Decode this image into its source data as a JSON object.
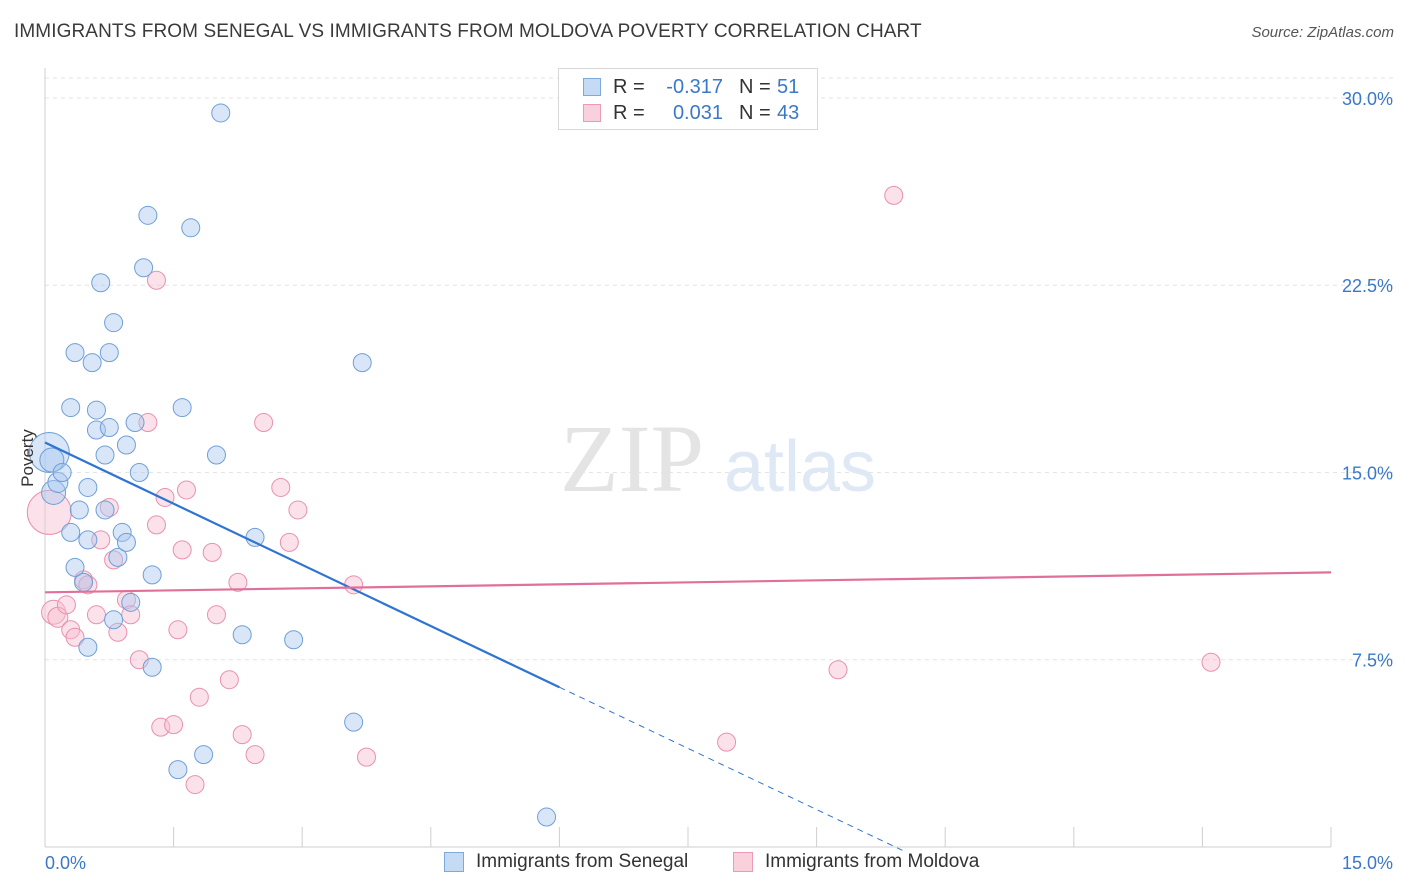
{
  "header": {
    "title": "IMMIGRANTS FROM SENEGAL VS IMMIGRANTS FROM MOLDOVA POVERTY CORRELATION CHART",
    "source": "Source: ZipAtlas.com"
  },
  "watermark": {
    "zip": "ZIP",
    "atlas": "atlas"
  },
  "legend": {
    "rows": [
      {
        "r_label": "R =",
        "r_value": "-0.317",
        "n_label": "N =",
        "n_value": "51"
      },
      {
        "r_label": "R =",
        "r_value": "0.031",
        "n_label": "N =",
        "n_value": "43"
      }
    ]
  },
  "bottom_legend": {
    "senegal": "Immigrants from Senegal",
    "moldova": "Immigrants from Moldova"
  },
  "colors": {
    "senegal_fill": "#a9c8f0",
    "senegal_stroke": "#6f9fd8",
    "senegal_line": "#2f74d0",
    "moldova_fill": "#f7bfd0",
    "moldova_stroke": "#e990ae",
    "moldova_line": "#e0709a",
    "axis_text": "#3a78c9",
    "grid": "#e3e3e3"
  },
  "chart_data": {
    "type": "scatter",
    "title": "IMMIGRANTS FROM SENEGAL VS IMMIGRANTS FROM MOLDOVA POVERTY CORRELATION CHART",
    "xlabel": "",
    "ylabel": "Poverty",
    "xlim": [
      0,
      15
    ],
    "ylim": [
      0,
      30.8
    ],
    "x_tick_labels": [
      "0.0%",
      "15.0%"
    ],
    "y_ticks": [
      7.5,
      15.0,
      22.5,
      30.0
    ],
    "y_tick_labels": [
      "7.5%",
      "15.0%",
      "22.5%",
      "30.0%"
    ],
    "series": [
      {
        "name": "Immigrants from Senegal",
        "r": -0.317,
        "n": 51,
        "trend": {
          "x0": 0,
          "y0": 16.2,
          "x1": 6.0,
          "y1": 6.4,
          "dashed_to_x": 10.0
        },
        "points": [
          [
            0.05,
            15.8,
            20
          ],
          [
            0.08,
            15.5,
            12
          ],
          [
            0.1,
            14.2,
            12
          ],
          [
            0.15,
            14.6,
            10
          ],
          [
            0.2,
            15.0,
            9
          ],
          [
            0.3,
            17.6,
            9
          ],
          [
            0.35,
            19.8,
            9
          ],
          [
            0.3,
            12.6,
            9
          ],
          [
            0.35,
            11.2,
            9
          ],
          [
            0.4,
            13.5,
            9
          ],
          [
            0.45,
            10.6,
            9
          ],
          [
            0.5,
            12.3,
            9
          ],
          [
            0.5,
            14.4,
            9
          ],
          [
            0.5,
            8.0,
            9
          ],
          [
            0.55,
            19.4,
            9
          ],
          [
            0.6,
            17.5,
            9
          ],
          [
            0.6,
            16.7,
            9
          ],
          [
            0.65,
            22.6,
            9
          ],
          [
            0.7,
            15.7,
            9
          ],
          [
            0.7,
            13.5,
            9
          ],
          [
            0.75,
            16.8,
            9
          ],
          [
            0.75,
            19.8,
            9
          ],
          [
            0.8,
            9.1,
            9
          ],
          [
            0.8,
            21.0,
            9
          ],
          [
            0.85,
            11.6,
            9
          ],
          [
            0.9,
            12.6,
            9
          ],
          [
            0.95,
            12.2,
            9
          ],
          [
            0.95,
            16.1,
            9
          ],
          [
            1.0,
            9.8,
            9
          ],
          [
            1.05,
            17.0,
            9
          ],
          [
            1.1,
            15.0,
            9
          ],
          [
            1.15,
            23.2,
            9
          ],
          [
            1.2,
            25.3,
            9
          ],
          [
            1.25,
            10.9,
            9
          ],
          [
            1.25,
            7.2,
            9
          ],
          [
            1.55,
            3.1,
            9
          ],
          [
            1.6,
            17.6,
            9
          ],
          [
            1.7,
            24.8,
            9
          ],
          [
            1.85,
            3.7,
            9
          ],
          [
            2.0,
            15.7,
            9
          ],
          [
            2.05,
            29.4,
            9
          ],
          [
            2.3,
            8.5,
            9
          ],
          [
            2.45,
            12.4,
            9
          ],
          [
            2.9,
            8.3,
            9
          ],
          [
            3.6,
            5.0,
            9
          ],
          [
            3.7,
            19.4,
            9
          ],
          [
            5.85,
            1.2,
            9
          ]
        ]
      },
      {
        "name": "Immigrants from Moldova",
        "r": 0.031,
        "n": 43,
        "trend": {
          "x0": 0,
          "y0": 10.2,
          "x1": 15.0,
          "y1": 11.0
        },
        "points": [
          [
            0.05,
            13.4,
            22
          ],
          [
            0.1,
            9.4,
            12
          ],
          [
            0.15,
            9.2,
            10
          ],
          [
            0.25,
            9.7,
            9
          ],
          [
            0.3,
            8.7,
            9
          ],
          [
            0.35,
            8.4,
            9
          ],
          [
            0.45,
            10.7,
            9
          ],
          [
            0.5,
            10.5,
            9
          ],
          [
            0.6,
            9.3,
            9
          ],
          [
            0.65,
            12.3,
            9
          ],
          [
            0.75,
            13.6,
            9
          ],
          [
            0.8,
            11.5,
            9
          ],
          [
            0.85,
            8.6,
            9
          ],
          [
            0.95,
            9.9,
            9
          ],
          [
            1.0,
            9.3,
            9
          ],
          [
            1.1,
            7.5,
            9
          ],
          [
            1.2,
            17.0,
            9
          ],
          [
            1.3,
            12.9,
            9
          ],
          [
            1.3,
            22.7,
            9
          ],
          [
            1.35,
            4.8,
            9
          ],
          [
            1.4,
            14.0,
            9
          ],
          [
            1.5,
            4.9,
            9
          ],
          [
            1.55,
            8.7,
            9
          ],
          [
            1.6,
            11.9,
            9
          ],
          [
            1.65,
            14.3,
            9
          ],
          [
            1.75,
            2.5,
            9
          ],
          [
            1.8,
            6.0,
            9
          ],
          [
            1.95,
            11.8,
            9
          ],
          [
            2.0,
            9.3,
            9
          ],
          [
            2.15,
            6.7,
            9
          ],
          [
            2.25,
            10.6,
            9
          ],
          [
            2.3,
            4.5,
            9
          ],
          [
            2.45,
            3.7,
            9
          ],
          [
            2.55,
            17.0,
            9
          ],
          [
            2.75,
            14.4,
            9
          ],
          [
            2.85,
            12.2,
            9
          ],
          [
            2.95,
            13.5,
            9
          ],
          [
            3.6,
            10.5,
            9
          ],
          [
            3.75,
            3.6,
            9
          ],
          [
            7.95,
            4.2,
            9
          ],
          [
            9.25,
            7.1,
            9
          ],
          [
            9.9,
            26.1,
            9
          ],
          [
            13.6,
            7.4,
            9
          ]
        ]
      }
    ]
  }
}
